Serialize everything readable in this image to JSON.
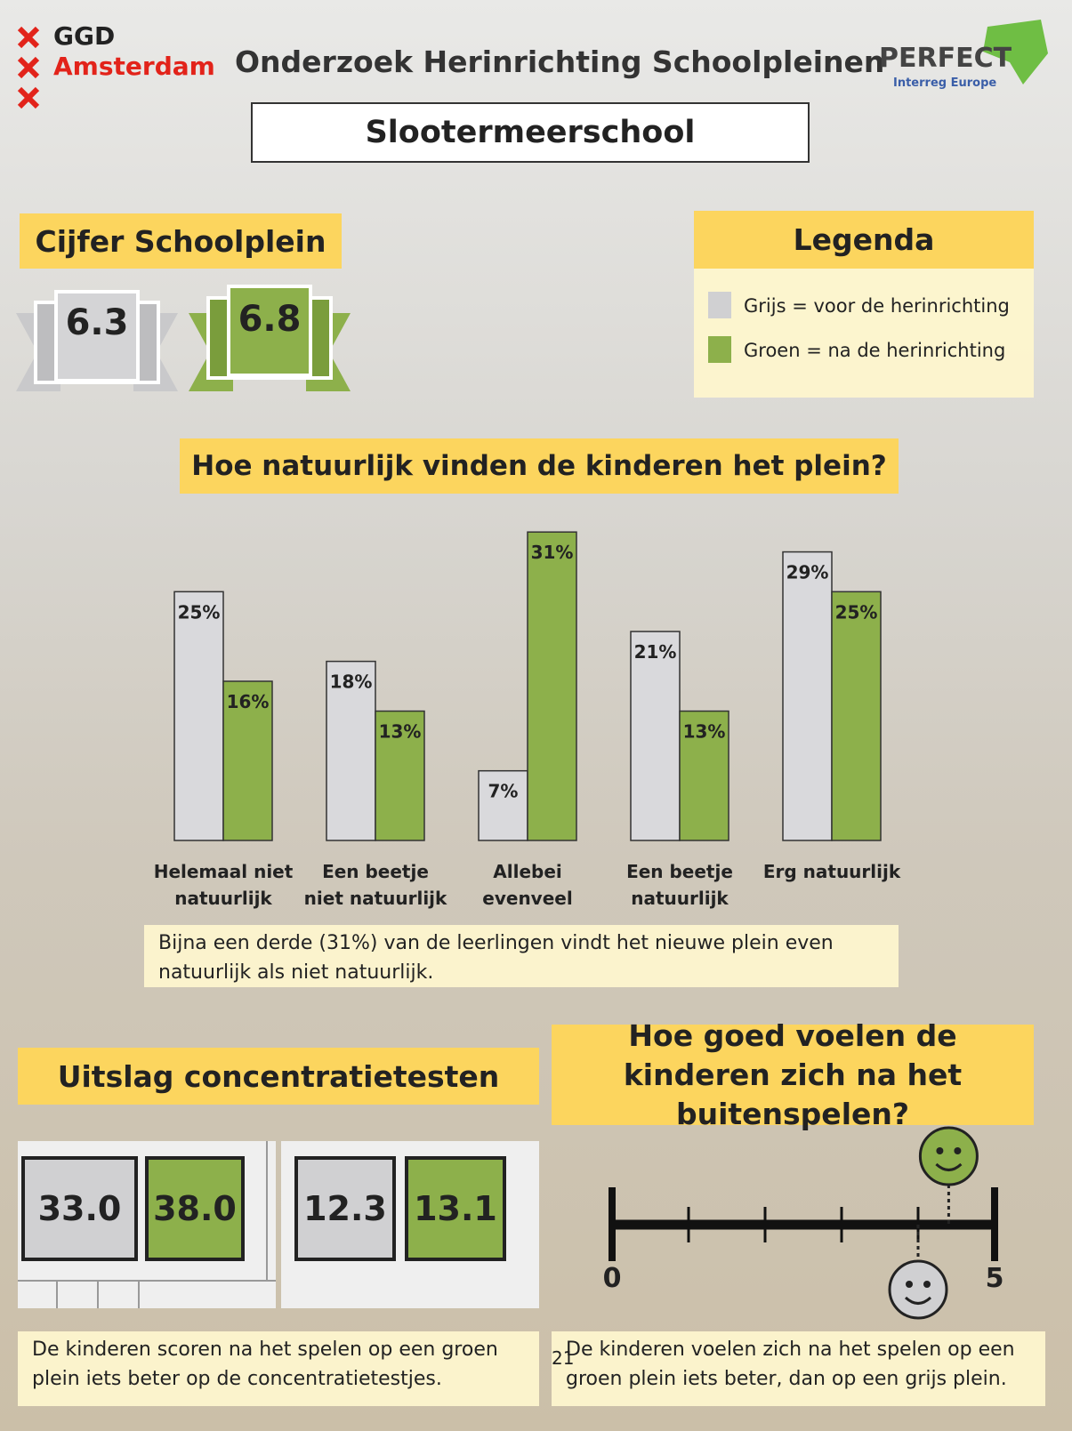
{
  "header": {
    "logo": [
      "GGD",
      "Amsterdam"
    ],
    "title": "Onderzoek Herinrichting Schoolpleinen",
    "partner": "PERFECT",
    "partner_sub": "Interreg Europe",
    "school": "Slootermeerschool"
  },
  "grades": {
    "title": "Cijfer Schoolplein",
    "before": "6.3",
    "after": "6.8"
  },
  "legend": {
    "title": "Legenda"
  },
  "chart_data": {
    "type": "bar",
    "title": "Hoe natuurlijk vinden de kinderen het plein?",
    "categories": [
      "Helemaal niet natuurlijk",
      "Een beetje niet natuurlijk",
      "Allebei evenveel",
      "Een beetje natuurlijk",
      "Erg natuurlijk"
    ],
    "series": [
      {
        "name": "Grijs = voor de herinrichting",
        "color": "#d9d9dc",
        "values": [
          25,
          18,
          7,
          21,
          29
        ],
        "value_labels": [
          "25%",
          "18%",
          "7%",
          "21%",
          "29%"
        ]
      },
      {
        "name": "Groen = na de herinrichting",
        "color": "#8db04b",
        "values": [
          16,
          13,
          31,
          13,
          25
        ],
        "value_labels": [
          "16%",
          "13%",
          "31%",
          "13%",
          "25%"
        ]
      }
    ],
    "ylim": [
      0,
      32
    ],
    "note": "Bijna een derde (31%) van de leerlingen vindt het  nieuwe plein even natuurlijk als niet natuurlijk."
  },
  "concentration": {
    "title": "Uitslag concentratietesten",
    "tests": [
      {
        "before": "33.0",
        "after": "38.0"
      },
      {
        "before": "12.3",
        "after": "13.1"
      }
    ],
    "note": "De kinderen scoren na het spelen op een groen plein iets beter op de concentratietestjes."
  },
  "wellbeing": {
    "type": "scale",
    "title": "Hoe goed voelen de kinderen zich na het buitenspelen?",
    "xlim": [
      0,
      5
    ],
    "xticks": [
      0,
      5
    ],
    "minor_ticks": [
      1,
      2,
      3,
      4
    ],
    "before": 4.0,
    "after": 4.4,
    "note": "De kinderen voelen zich na het spelen op een groen plein iets beter, dan op een grijs plein."
  },
  "page_number": "21"
}
